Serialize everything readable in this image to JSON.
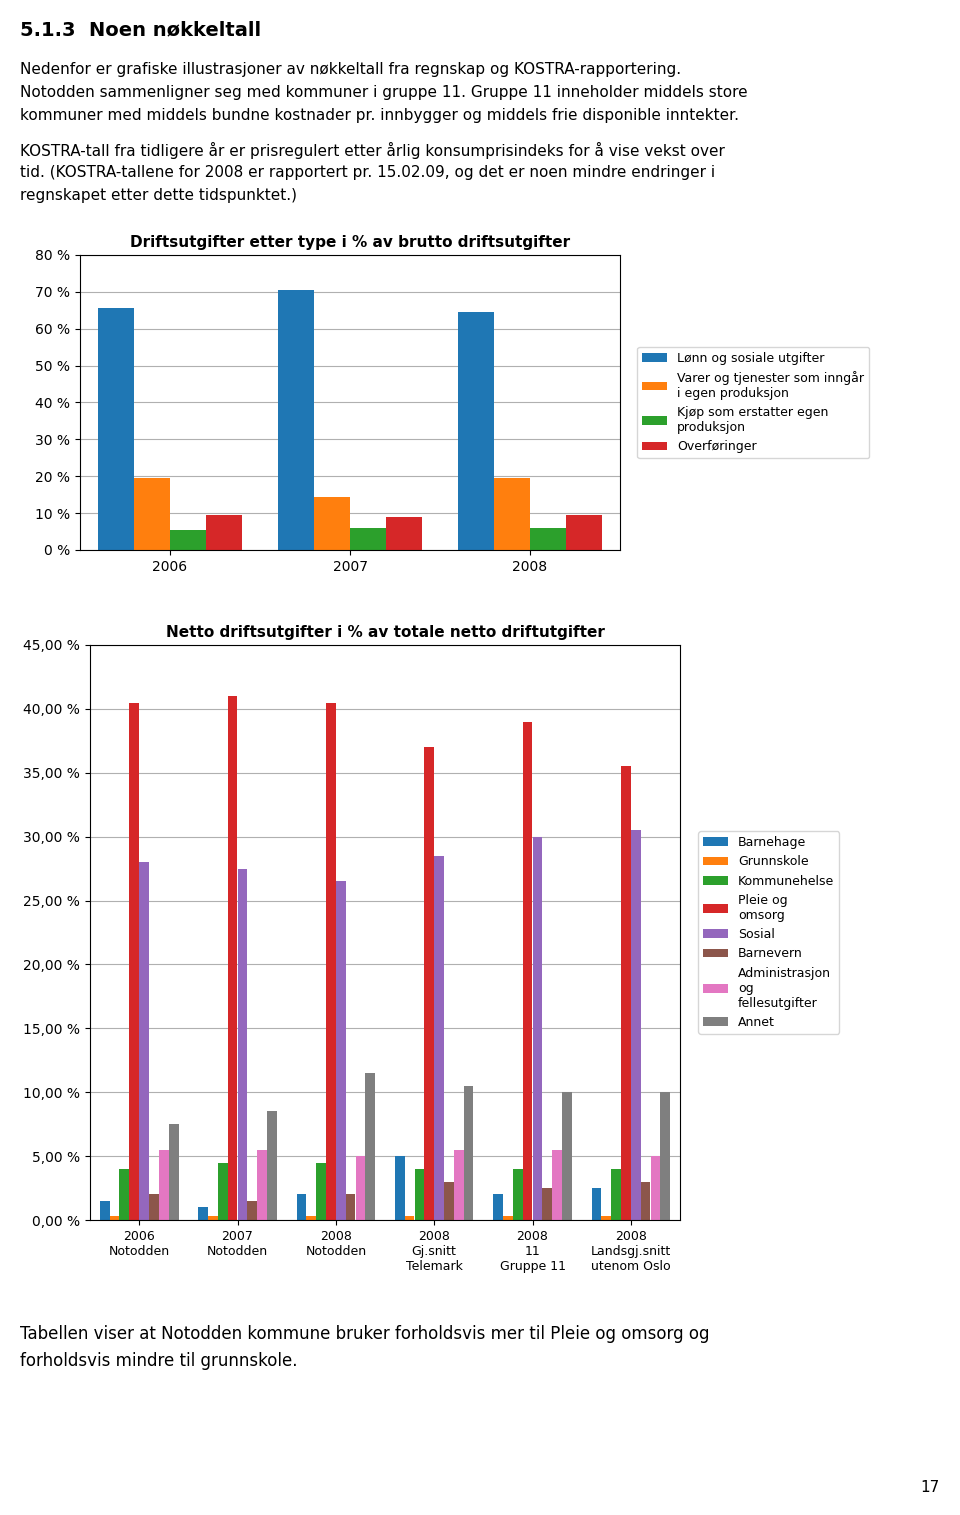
{
  "title": "5.1.3  Noen nøkkeltall",
  "annotations": [
    "Nedenfor er grafiske illustrasjoner av nøkkeltall fra regnskap og KOSTRA-rapportering.",
    "Notodden sammenligner seg med kommuner i gruppe 11. Gruppe 11 inneholder middels store",
    "kommuner med middels bundne kostnader pr. innbygger og middels frie disponible inntekter.",
    "KOSTRA-tall fra tidligere år er prisregulert etter årlig konsumprisindeks for å vise vekst over",
    "tid. (KOSTRA-tallene for 2008 er rapportert pr. 15.02.09, og det er noen mindre endringer i",
    "regnskapet etter dette tidspunktet.)",
    "Tabellen viser at Notodden kommune bruker forholdsvis mer til Pleie og omsorg og",
    "forholdsvis mindre til grunnskole.",
    "17"
  ],
  "chart_data": [
    {
      "type": "bar",
      "title": "Driftsutgifter etter type i % av brutto driftsutgifter",
      "categories": [
        "2006",
        "2007",
        "2008"
      ],
      "series": [
        {
          "name": "Lønn og sosiale utgifter",
          "values": [
            65.5,
            70.5,
            64.5
          ]
        },
        {
          "name": "Varer og tjenester som inngår\ni egen produksjon",
          "values": [
            19.5,
            14.5,
            19.5
          ]
        },
        {
          "name": "Kjøp som erstatter egen\nproduksjon",
          "values": [
            5.5,
            6.0,
            6.0
          ]
        },
        {
          "name": "Overføringer",
          "values": [
            9.5,
            9.0,
            9.5
          ]
        }
      ],
      "ylim": [
        0,
        80
      ],
      "yticks": [
        {
          "value": 0,
          "label": "0 %"
        },
        {
          "value": 10,
          "label": "10 %"
        },
        {
          "value": 20,
          "label": "20 %"
        },
        {
          "value": 30,
          "label": "30 %"
        },
        {
          "value": 40,
          "label": "40 %"
        },
        {
          "value": 50,
          "label": "50 %"
        },
        {
          "value": 60,
          "label": "60 %"
        },
        {
          "value": 70,
          "label": "70 %"
        },
        {
          "value": 80,
          "label": "80 %"
        }
      ],
      "grid": true,
      "legend": "right"
    },
    {
      "type": "bar",
      "title": "Netto driftsutgifter i % av totale netto driftutgifter",
      "categories": [
        "2006\nNotodden",
        "2007\nNotodden",
        "2008\nNotodden",
        "2008\nGj.snitt\nTelemark",
        "2008\n11\nGruppe 11",
        "2008\nLandsgj.snitt\nutenom Oslo"
      ],
      "series": [
        {
          "name": "Barnehage",
          "values": [
            1.5,
            1.0,
            2.0,
            5.0,
            2.0,
            2.5
          ]
        },
        {
          "name": "Grunnskole",
          "values": [
            0.3,
            0.3,
            0.3,
            0.3,
            0.3,
            0.3
          ]
        },
        {
          "name": "Kommunehelse",
          "values": [
            4.0,
            4.5,
            4.5,
            4.0,
            4.0,
            4.0
          ]
        },
        {
          "name": "Pleie og\nomsorg",
          "values": [
            40.5,
            41.0,
            40.5,
            37.0,
            39.0,
            35.5
          ]
        },
        {
          "name": "Sosial",
          "values": [
            28.0,
            27.5,
            26.5,
            28.5,
            30.0,
            30.5
          ]
        },
        {
          "name": "Barnevern",
          "values": [
            2.0,
            1.5,
            2.0,
            3.0,
            2.5,
            3.0
          ]
        },
        {
          "name": "Administrasjon\nog\nfellesutgifter",
          "values": [
            5.5,
            5.5,
            5.0,
            5.5,
            5.5,
            5.0
          ]
        },
        {
          "name": "Annet",
          "values": [
            7.5,
            8.5,
            11.5,
            10.5,
            10.0,
            10.0
          ]
        }
      ],
      "ylim": [
        0,
        45
      ],
      "yticks": [
        {
          "value": 0,
          "label": "0,00 %"
        },
        {
          "value": 5,
          "label": "5,00 %"
        },
        {
          "value": 10,
          "label": "10,00 %"
        },
        {
          "value": 15,
          "label": "15,00 %"
        },
        {
          "value": 20,
          "label": "20,00 %"
        },
        {
          "value": 25,
          "label": "25,00 %"
        },
        {
          "value": 30,
          "label": "30,00 %"
        },
        {
          "value": 35,
          "label": "35,00 %"
        },
        {
          "value": 40,
          "label": "40,00 %"
        },
        {
          "value": 45,
          "label": "45,00 %"
        }
      ],
      "grid": true,
      "legend": "right"
    }
  ]
}
